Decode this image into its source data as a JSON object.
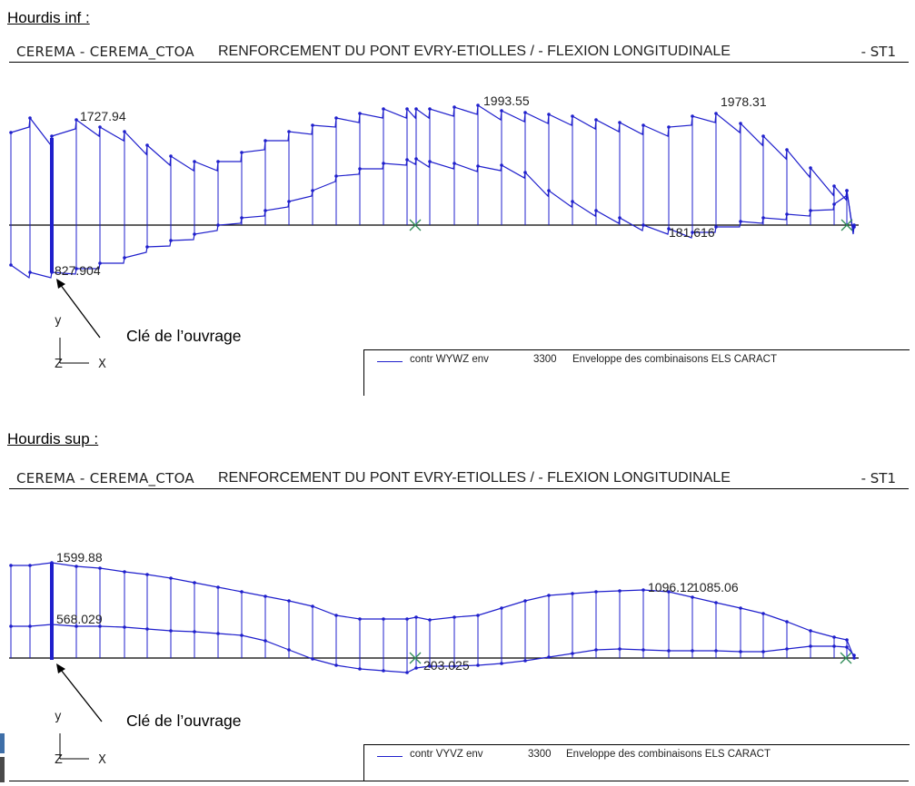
{
  "sections": [
    {
      "heading": "Hourdis inf :",
      "header": {
        "org": "CEREMA - CEREMA_CTOA",
        "title": "RENFORCEMENT DU PONT EVRY-ETIOLLES / - FLEXION LONGITUDINALE",
        "suffix": "- ST1"
      },
      "annotations": {
        "max": "1727.94",
        "peak": "1993.55",
        "right_max": "1978.31",
        "min_left": "827.904",
        "min_right": "181.616"
      },
      "axes": {
        "y": "y",
        "z": "Z",
        "x": "X"
      },
      "arrow_label": "Clé de l’ouvrage",
      "legend": {
        "series": "contr WYWZ env",
        "code": "3300",
        "description": "Enveloppe des combinaisons ELS CARACT"
      }
    },
    {
      "heading": "Hourdis sup :",
      "header": {
        "org": "CEREMA - CEREMA_CTOA",
        "title": "RENFORCEMENT DU PONT EVRY-ETIOLLES / - FLEXION LONGITUDINALE",
        "suffix": "- ST1"
      },
      "annotations": {
        "max": "1599.88",
        "mid": "568.029",
        "min": "203.025",
        "right_a": "1096.12",
        "right_b": "1085.06"
      },
      "axes": {
        "y": "y",
        "z": "Z",
        "x": "X"
      },
      "arrow_label": "Clé de l’ouvrage",
      "legend": {
        "series": "contr VYVZ env",
        "code": "3300",
        "description": "Enveloppe des combinaisons ELS CARACT"
      }
    }
  ],
  "colors": {
    "curve": "#1f1fcc",
    "baseline": "#000000",
    "support": "#2e8b57"
  }
}
